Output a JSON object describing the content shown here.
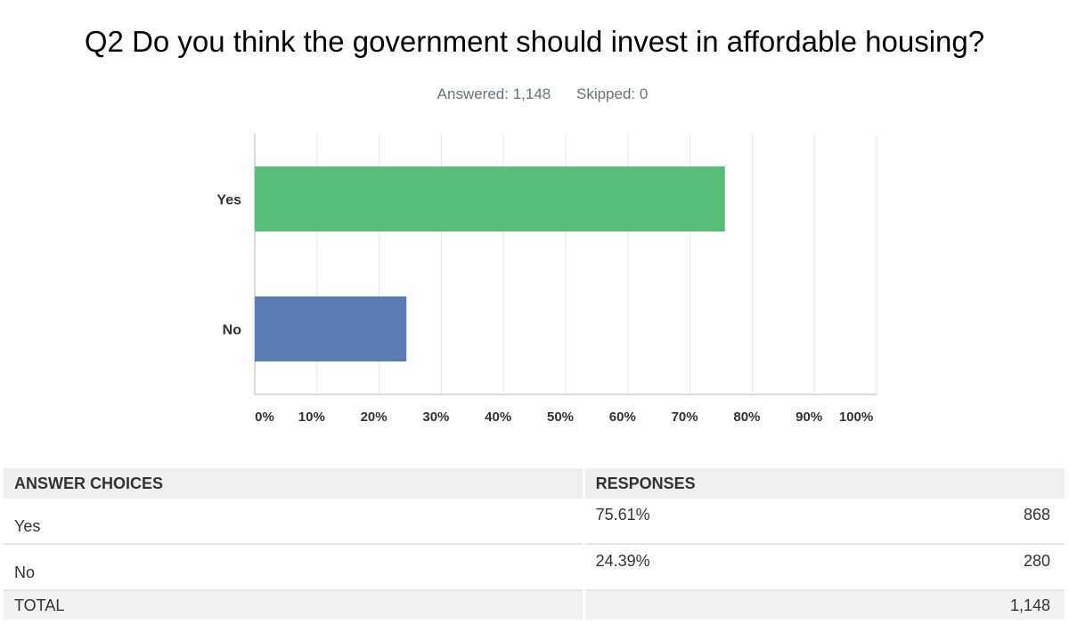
{
  "title": "Q2 Do you think the government should invest in affordable housing?",
  "answered": "Answered: 1,148",
  "skipped": "Skipped: 0",
  "chart_data": {
    "type": "bar",
    "orientation": "horizontal",
    "categories": [
      "Yes",
      "No"
    ],
    "values": [
      75.61,
      24.39
    ],
    "colors": [
      "#57bd77",
      "#5b7db3"
    ],
    "xlim": [
      0,
      100
    ],
    "ticks": [
      "0%",
      "10%",
      "20%",
      "30%",
      "40%",
      "50%",
      "60%",
      "70%",
      "80%",
      "90%",
      "100%"
    ],
    "grid": true
  },
  "table": {
    "headers": [
      "ANSWER CHOICES",
      "RESPONSES"
    ],
    "rows": [
      {
        "choice": "Yes",
        "percent": "75.61%",
        "count": "868"
      },
      {
        "choice": "No",
        "percent": "24.39%",
        "count": "280"
      }
    ],
    "total": {
      "label": "TOTAL",
      "count": "1,148"
    }
  }
}
